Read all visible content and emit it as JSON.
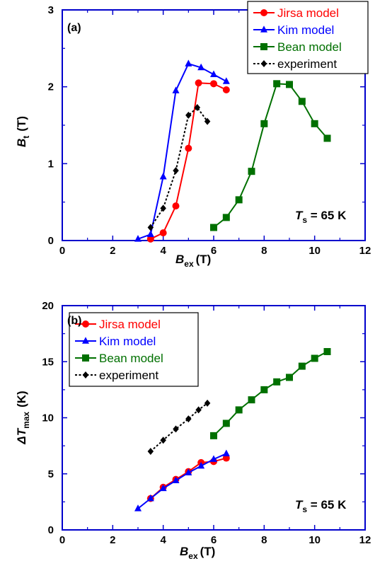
{
  "chart_data": [
    {
      "type": "line",
      "panel_label": "(a)",
      "xlabel": "B",
      "xlabel_sub": "ex",
      "xlabel_unit": "(T)",
      "ylabel": "B",
      "ylabel_sub": "t",
      "ylabel_unit": "(T)",
      "xlim": [
        0,
        12
      ],
      "ylim": [
        0,
        3
      ],
      "xticks": [
        "0",
        "2",
        "4",
        "6",
        "8",
        "10",
        "12"
      ],
      "yticks": [
        "0",
        "1",
        "2",
        "3"
      ],
      "annotation": {
        "main": "T",
        "sub": "s",
        "rest": " = 65 K"
      },
      "legend_position": "top-right",
      "series": [
        {
          "name": "Jirsa model",
          "color": "#ff0000",
          "marker": "circle",
          "dash": false,
          "x": [
            3.5,
            4.0,
            4.5,
            5.0,
            5.4,
            6.0,
            6.5
          ],
          "y": [
            0.02,
            0.1,
            0.45,
            1.2,
            2.05,
            2.04,
            1.96
          ]
        },
        {
          "name": "Kim model",
          "color": "#0000ff",
          "marker": "triangle",
          "dash": false,
          "x": [
            3.0,
            3.5,
            4.0,
            4.5,
            5.0,
            5.5,
            6.0,
            6.5
          ],
          "y": [
            0.02,
            0.08,
            0.83,
            1.95,
            2.3,
            2.25,
            2.16,
            2.07
          ]
        },
        {
          "name": "Bean model",
          "color": "#007000",
          "marker": "square",
          "dash": false,
          "x": [
            6.0,
            6.5,
            7.0,
            7.5,
            8.0,
            8.5,
            9.0,
            9.5,
            10.0,
            10.5
          ],
          "y": [
            0.17,
            0.3,
            0.53,
            0.9,
            1.52,
            2.04,
            2.03,
            1.81,
            1.52,
            1.33
          ]
        },
        {
          "name": "experiment",
          "color": "#000000",
          "marker": "diamond",
          "dash": true,
          "x": [
            3.5,
            4.0,
            4.5,
            5.0,
            5.35,
            5.75
          ],
          "y": [
            0.17,
            0.42,
            0.91,
            1.63,
            1.73,
            1.55
          ]
        }
      ]
    },
    {
      "type": "line",
      "panel_label": "(b)",
      "xlabel": "B",
      "xlabel_sub": "ex",
      "xlabel_unit": "(T)",
      "ylabel": "ΔT",
      "ylabel_sub": "max",
      "ylabel_unit": "(K)",
      "xlim": [
        0,
        12
      ],
      "ylim": [
        0,
        20
      ],
      "xticks": [
        "0",
        "2",
        "4",
        "6",
        "8",
        "10",
        "12"
      ],
      "yticks": [
        "0",
        "5",
        "10",
        "15",
        "20"
      ],
      "annotation": {
        "main": "T",
        "sub": "s",
        "rest": " = 65 K"
      },
      "legend_position": "top-left",
      "series": [
        {
          "name": "Jirsa model",
          "color": "#ff0000",
          "marker": "circle",
          "dash": false,
          "x": [
            3.5,
            4.0,
            4.5,
            5.0,
            5.5,
            6.0,
            6.5
          ],
          "y": [
            2.8,
            3.8,
            4.5,
            5.2,
            6.0,
            6.1,
            6.4
          ]
        },
        {
          "name": "Kim model",
          "color": "#0000ff",
          "marker": "triangle",
          "dash": false,
          "x": [
            3.0,
            3.5,
            4.0,
            4.5,
            5.0,
            5.5,
            6.0,
            6.5
          ],
          "y": [
            1.9,
            2.8,
            3.7,
            4.4,
            5.1,
            5.7,
            6.3,
            6.8
          ]
        },
        {
          "name": "Bean model",
          "color": "#007000",
          "marker": "square",
          "dash": false,
          "x": [
            6.0,
            6.5,
            7.0,
            7.5,
            8.0,
            8.5,
            9.0,
            9.5,
            10.0,
            10.5
          ],
          "y": [
            8.4,
            9.5,
            10.7,
            11.6,
            12.5,
            13.2,
            13.6,
            14.6,
            15.3,
            15.9
          ]
        },
        {
          "name": "experiment",
          "color": "#000000",
          "marker": "diamond",
          "dash": true,
          "x": [
            3.5,
            4.0,
            4.5,
            5.0,
            5.4,
            5.75
          ],
          "y": [
            7.0,
            8.0,
            9.0,
            9.9,
            10.7,
            11.3
          ]
        }
      ]
    }
  ]
}
